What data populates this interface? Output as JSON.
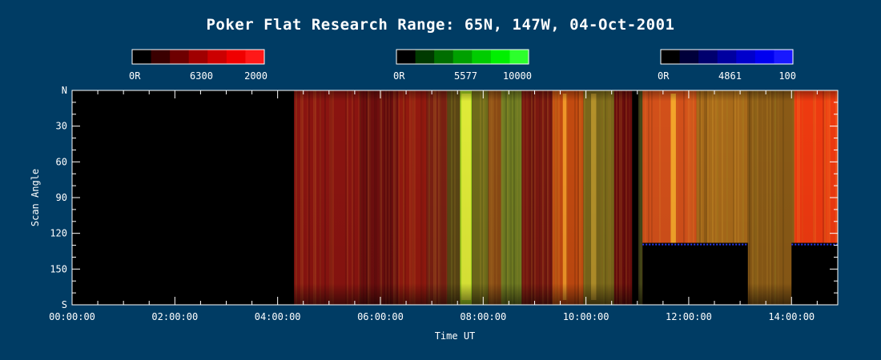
{
  "chart_data": {
    "type": "heatmap",
    "title": "Poker Flat Research Range: 65N, 147W, 04-Oct-2001",
    "xlabel": "Time UT",
    "ylabel": "Scan Angle",
    "x_range_hours": [
      0,
      14.9
    ],
    "y_range_deg": [
      0,
      180
    ],
    "x_ticks": [
      "00:00:00",
      "02:00:00",
      "04:00:00",
      "06:00:00",
      "08:00:00",
      "10:00:00",
      "12:00:00",
      "14:00:00"
    ],
    "x_tick_hours": [
      0,
      2,
      4,
      6,
      8,
      10,
      12,
      14
    ],
    "y_ticks": [
      "N",
      "30",
      "60",
      "90",
      "120",
      "150",
      "S"
    ],
    "y_tick_values": [
      0,
      30,
      60,
      90,
      120,
      150,
      180
    ],
    "colorbars": [
      {
        "name": "6300",
        "min_label": "0R",
        "max_label": "2000",
        "colors": [
          "#000000",
          "#3a0000",
          "#6e0000",
          "#a00000",
          "#cc0000",
          "#f00000"
        ],
        "accent": "#ff1818"
      },
      {
        "name": "5577",
        "min_label": "0R",
        "max_label": "10000",
        "colors": [
          "#000000",
          "#003a00",
          "#006e00",
          "#00a000",
          "#00cc00",
          "#00f000"
        ],
        "accent": "#2cff2c"
      },
      {
        "name": "4861",
        "min_label": "0R",
        "max_label": "100",
        "colors": [
          "#000000",
          "#00003a",
          "#00006e",
          "#0000a0",
          "#0000cc",
          "#0000f0"
        ],
        "accent": "#1818ff"
      }
    ],
    "segments": [
      {
        "start": 0.0,
        "end": 4.32,
        "color": "#000000"
      },
      {
        "start": 4.32,
        "end": 5.6,
        "color": "#8a1410"
      },
      {
        "start": 5.6,
        "end": 6.35,
        "color": "#6e0e0e"
      },
      {
        "start": 6.35,
        "end": 6.9,
        "color": "#92190f"
      },
      {
        "start": 6.9,
        "end": 7.3,
        "color": "#7a2012"
      },
      {
        "start": 7.3,
        "end": 7.55,
        "color": "#5a4614"
      },
      {
        "start": 7.55,
        "end": 7.78,
        "color": "#a6d820"
      },
      {
        "start": 7.78,
        "end": 8.1,
        "color": "#6e6a1a"
      },
      {
        "start": 8.1,
        "end": 8.35,
        "color": "#8a4a14"
      },
      {
        "start": 8.35,
        "end": 8.75,
        "color": "#6e7a22"
      },
      {
        "start": 8.75,
        "end": 9.35,
        "color": "#7a1810"
      },
      {
        "start": 9.35,
        "end": 9.95,
        "color": "#c24a10"
      },
      {
        "start": 9.95,
        "end": 10.55,
        "color": "#7a661a"
      },
      {
        "start": 10.55,
        "end": 10.9,
        "color": "#6a0c0c"
      },
      {
        "start": 10.9,
        "end": 11.1,
        "color": "#3a3a16"
      },
      {
        "start": 11.1,
        "end": 12.15,
        "color": "#d2501a"
      },
      {
        "start": 12.15,
        "end": 13.15,
        "color": "#a86a1a"
      },
      {
        "start": 13.15,
        "end": 14.05,
        "color": "#8a5a16"
      },
      {
        "start": 14.05,
        "end": 14.9,
        "color": "#ee3a10"
      }
    ],
    "streaks": [
      {
        "start": 7.58,
        "end": 7.76,
        "color": "#f2f040"
      },
      {
        "start": 9.55,
        "end": 9.62,
        "color": "#ffb030"
      },
      {
        "start": 11.65,
        "end": 11.75,
        "color": "#ffc030"
      },
      {
        "start": 10.1,
        "end": 10.2,
        "color": "#c8a030"
      }
    ],
    "blank_regions": [
      {
        "start": 11.1,
        "end": 13.15,
        "angle_from": 128,
        "angle_to": 180
      },
      {
        "start": 14.0,
        "end": 14.9,
        "angle_from": 128,
        "angle_to": 180
      },
      {
        "start": 10.9,
        "end": 11.02,
        "angle_from": 0,
        "angle_to": 180
      }
    ]
  }
}
